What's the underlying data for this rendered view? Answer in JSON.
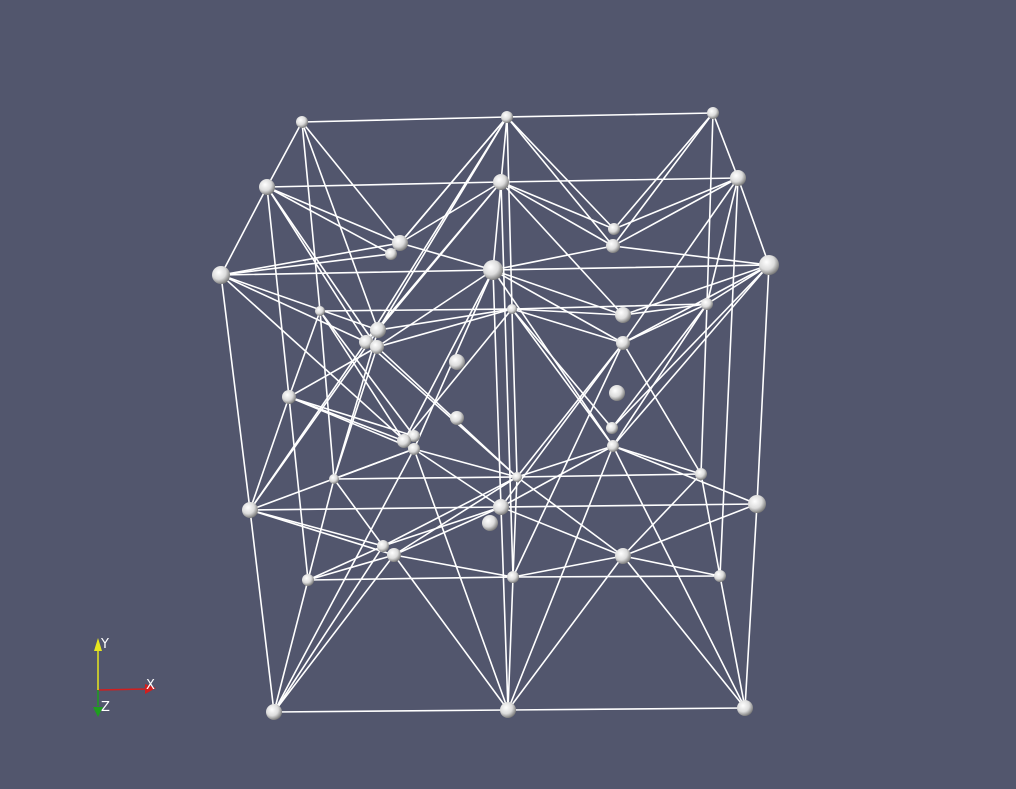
{
  "view": {
    "background": "#52566d",
    "edge_color": "#ffffff",
    "node_color": "#e6e6e6"
  },
  "orientation_axes": {
    "x_label": "X",
    "y_label": "Y",
    "z_label": "Z",
    "x_color": "#d21e1e",
    "y_color": "#e6e61e",
    "z_color": "#1e9e1e"
  }
}
